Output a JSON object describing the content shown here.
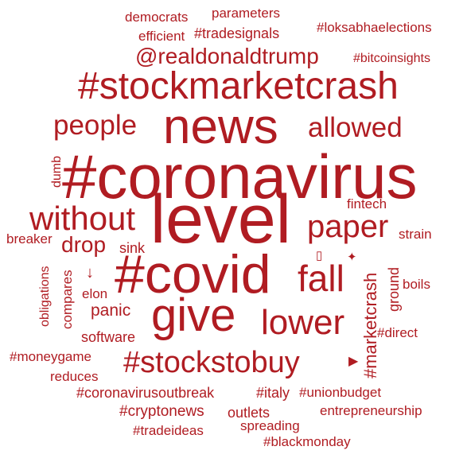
{
  "word_cloud": {
    "color": "#b01c22",
    "words": {
      "democrats": "democrats",
      "parameters": "parameters",
      "efficient": "efficient",
      "tradesignals": "#tradesignals",
      "loksabhaelections": "#loksabhaelections",
      "realdonaldtrump": "@realdonaldtrump",
      "bitcoinsights": "#bitcoinsights",
      "stockmarketcrash": "#stockmarketcrash",
      "people": "people",
      "news": "news",
      "allowed": "allowed",
      "coronavirus": "#coronavirus",
      "dumb": "dumb",
      "fintech": "fintech",
      "without": "without",
      "level": "level",
      "paper": "paper",
      "strain": "strain",
      "breaker": "breaker",
      "drop": "drop",
      "sink": "sink",
      "box_glyph": "▯",
      "sparkle_glyph": "✦",
      "obligations": "obligations",
      "covid": "#covid",
      "fall": "fall",
      "arrow_glyph": "↓",
      "marketcrash": "#marketcrash",
      "ground": "ground",
      "boils": "boils",
      "elon": "elon",
      "compares": "compares",
      "panic": "panic",
      "give": "give",
      "lower": "lower",
      "software": "software",
      "direct": "#direct",
      "moneygame": "#moneygame",
      "stockstobuy": "#stockstobuy",
      "play_glyph": "▶",
      "reduces": "reduces",
      "coronavirusoutbreak": "#coronavirusoutbreak",
      "italy": "#italy",
      "unionbudget": "#unionbudget",
      "cryptonews": "#cryptonews",
      "outlets": "outlets",
      "entrepreneurship": "entrepreneurship",
      "tradeideas": "#tradeideas",
      "spreading": "spreading",
      "blackmonday": "#blackmonday"
    }
  }
}
